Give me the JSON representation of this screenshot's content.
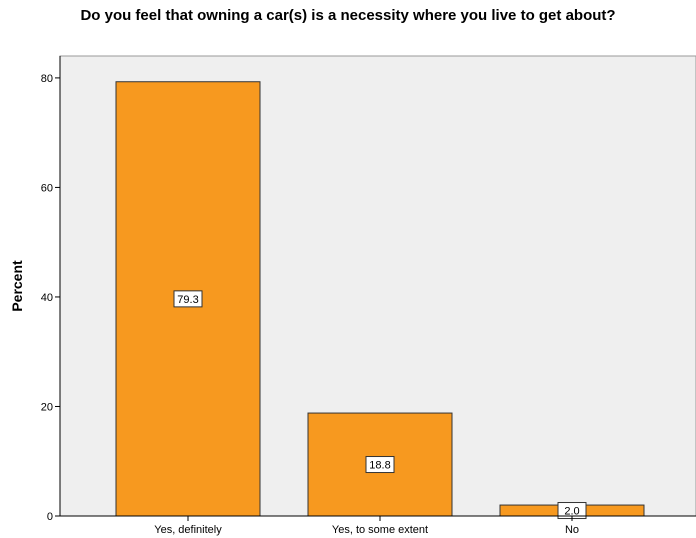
{
  "chart_data": {
    "type": "bar",
    "title": "Do you feel that owning a car(s) is a necessity where you live to get about?",
    "xlabel": "",
    "ylabel": "Percent",
    "categories": [
      "Yes, definitely",
      "Yes, to some extent",
      "No"
    ],
    "values": [
      79.3,
      18.8,
      2.0
    ],
    "data_labels": [
      "79.3",
      "18.8",
      "2.0"
    ],
    "ylim": [
      0,
      84
    ],
    "yticks": [
      0,
      20,
      40,
      60,
      80
    ],
    "grid": false,
    "legend": "none",
    "colors": {
      "bar_fill": "#F7991F",
      "bar_stroke": "#333333",
      "plot_background": "#EFEFEF",
      "axis": "#000000"
    }
  }
}
